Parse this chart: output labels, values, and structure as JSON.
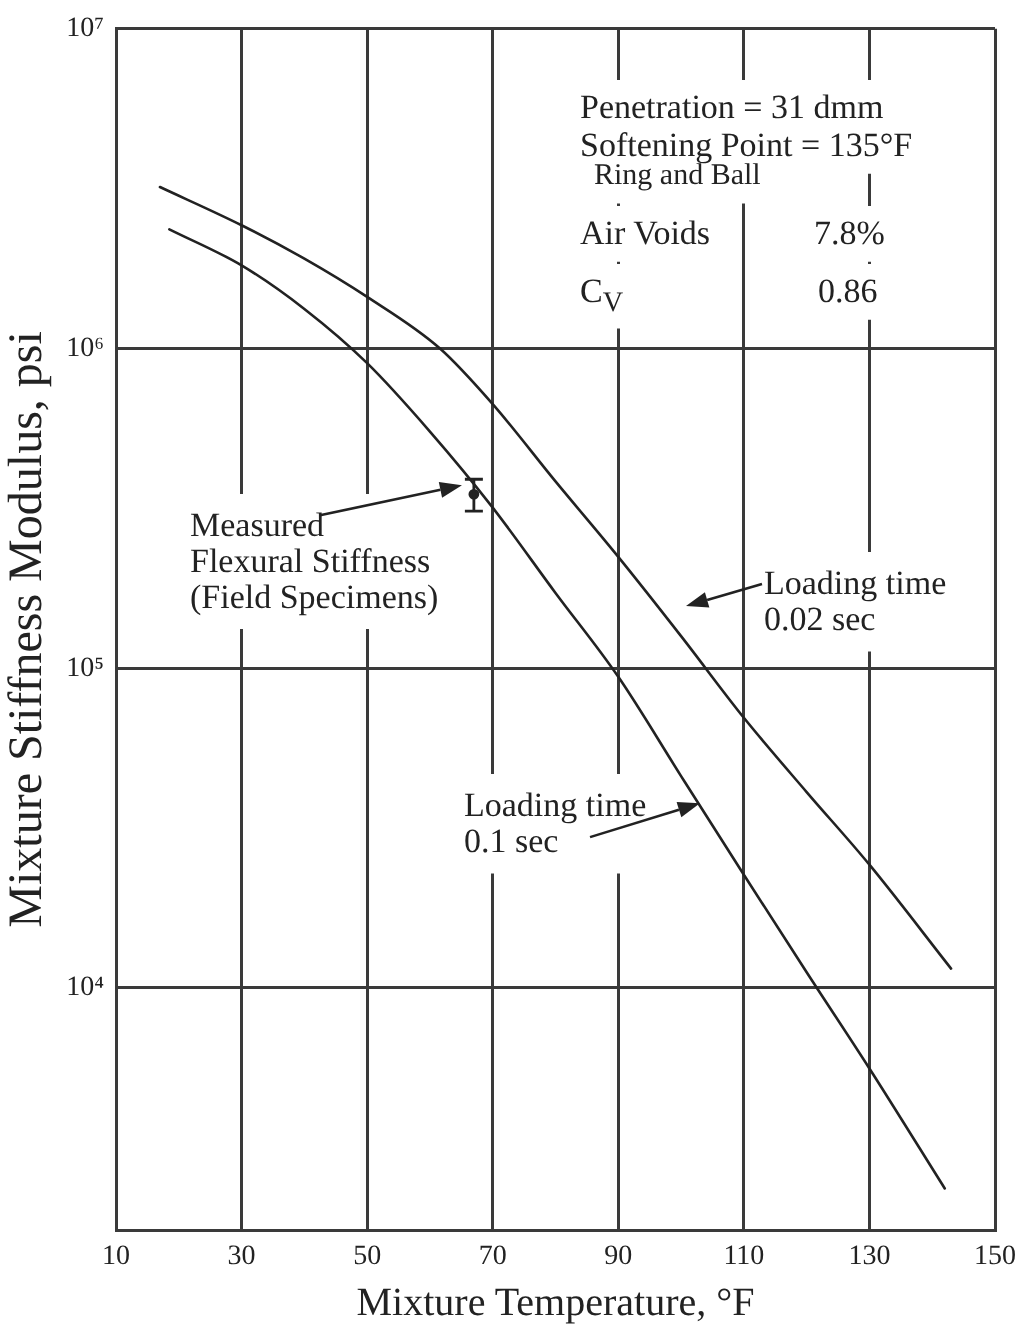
{
  "chart_data": {
    "type": "line",
    "xlabel": "Mixture Temperature, °F",
    "ylabel": "Mixture Stiffness Modulus, psi",
    "annotations": [
      "Penetration = 31 dmm",
      "Softening Point = 135°F",
      "Ring and Ball",
      "Air Voids",
      "7.8%",
      "C$_{V}$",
      "0.86"
    ],
    "series": [
      {
        "name": "Loading time\n0.02 sec",
        "color": "#222222",
        "x": [
          17,
          30,
          40,
          50,
          61.6,
          70,
          80,
          90,
          100,
          110,
          120,
          130,
          143
        ],
        "values": [
          3200000,
          2430000,
          1910000,
          1450000,
          1000000,
          670000,
          384000,
          223000,
          126000,
          70000,
          41000,
          24300,
          11500
        ]
      },
      {
        "name": "Loading time\n0.1 sec",
        "color": "#222222",
        "x": [
          18.5,
          30,
          40,
          50,
          60,
          70,
          80,
          90,
          100,
          110,
          120,
          130,
          142
        ],
        "values": [
          2360000,
          1820000,
          1330000,
          900000,
          550000,
          318000,
          172000,
          94000,
          46000,
          22600,
          11200,
          5600,
          2360
        ]
      },
      {
        "name": "Measured\nFlexural Stiffness\n(Field Specimens)",
        "type": "scatter",
        "marker": "circle",
        "color": "#222222",
        "x": [
          67
        ],
        "values": [
          350000
        ],
        "errors": [
          [
            310000,
            390000
          ]
        ]
      }
    ],
    "xlim": [
      10,
      150
    ],
    "xticks": [
      10,
      30,
      50,
      70,
      90,
      110,
      130,
      150
    ],
    "ylim": [
      1750,
      10000000
    ],
    "yticks": [
      {
        "value": 10000,
        "label": "10⁴"
      },
      {
        "value": 100000,
        "label": "10⁵"
      },
      {
        "value": 1000000,
        "label": "10⁶"
      },
      {
        "value": 10000000,
        "label": "10⁷"
      }
    ],
    "log": "y",
    "grid": true,
    "marker": "none"
  }
}
